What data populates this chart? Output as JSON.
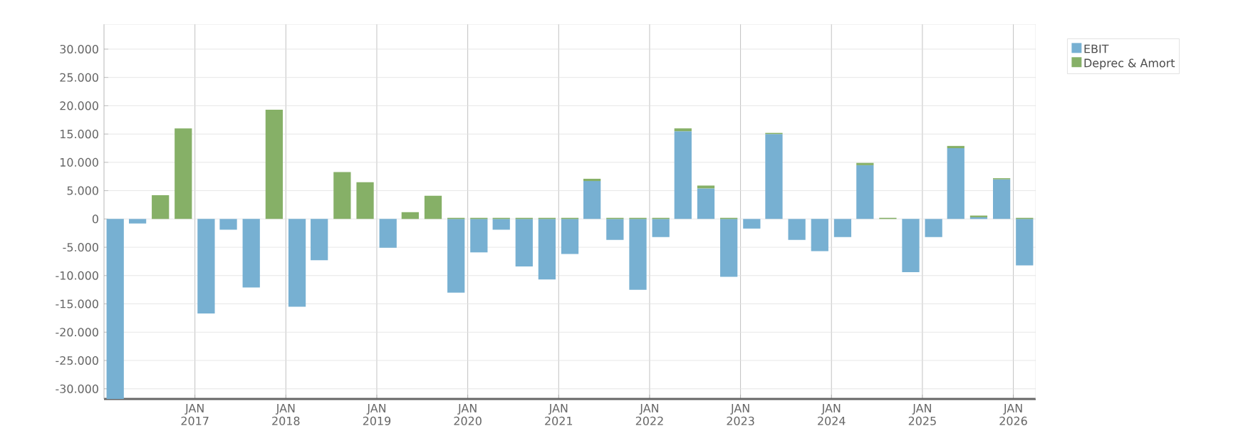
{
  "chart_data": {
    "type": "bar",
    "stacked": true,
    "grid": true,
    "legend": "top right",
    "x": [
      "2016-02-15",
      "2016-05-15",
      "2016-08-15",
      "2016-11-15",
      "2017-02-15",
      "2017-05-15",
      "2017-08-15",
      "2017-11-15",
      "2018-02-15",
      "2018-05-15",
      "2018-08-15",
      "2018-11-15",
      "2019-02-15",
      "2019-05-15",
      "2019-08-15",
      "2019-11-15",
      "2020-02-15",
      "2020-05-15",
      "2020-08-15",
      "2020-11-15",
      "2021-02-15",
      "2021-05-15",
      "2021-08-15",
      "2021-11-15",
      "2022-02-15",
      "2022-05-15",
      "2022-08-15",
      "2022-11-15",
      "2023-02-15",
      "2023-05-15",
      "2023-08-15",
      "2023-11-15",
      "2024-02-15",
      "2024-05-15",
      "2024-08-15",
      "2024-11-15",
      "2025-02-15",
      "2025-05-15",
      "2025-08-15",
      "2025-11-15",
      "2026-02-15"
    ],
    "series": [
      {
        "name": "EBIT",
        "color": "#77b0d2",
        "values": [
          -31800,
          -800,
          null,
          null,
          -16700,
          -1900,
          -12100,
          null,
          -15500,
          -7300,
          null,
          null,
          -5100,
          null,
          null,
          -13000,
          -5900,
          -1900,
          -8400,
          -10700,
          -6200,
          6700,
          -3700,
          -12500,
          -3200,
          15500,
          5400,
          -10200,
          -1700,
          15000,
          -3700,
          -5700,
          -3200,
          9500,
          null,
          -9400,
          -3200,
          12500,
          300,
          7000,
          -8200
        ]
      },
      {
        "name": "Deprec & Amort",
        "color": "#86b067",
        "values": [
          null,
          null,
          4200,
          16000,
          null,
          null,
          null,
          19300,
          null,
          null,
          8300,
          6500,
          null,
          1200,
          4100,
          200,
          200,
          200,
          200,
          200,
          200,
          400,
          200,
          200,
          200,
          500,
          500,
          200,
          null,
          200,
          null,
          null,
          null,
          400,
          200,
          null,
          null,
          400,
          300,
          200,
          200
        ]
      }
    ],
    "xlim": [
      "2016-01-01",
      "2026-04-01"
    ],
    "xticks": [
      {
        "value": "2017-01-01",
        "label": "JAN 2017"
      },
      {
        "value": "2018-01-01",
        "label": "JAN 2018"
      },
      {
        "value": "2019-01-01",
        "label": "JAN 2019"
      },
      {
        "value": "2020-01-01",
        "label": "JAN 2020"
      },
      {
        "value": "2021-01-01",
        "label": "JAN 2021"
      },
      {
        "value": "2022-01-01",
        "label": "JAN 2022"
      },
      {
        "value": "2023-01-01",
        "label": "JAN 2023"
      },
      {
        "value": "2024-01-01",
        "label": "JAN 2024"
      },
      {
        "value": "2025-01-01",
        "label": "JAN 2025"
      },
      {
        "value": "2026-01-01",
        "label": "JAN 2026"
      }
    ],
    "ylim": [
      -31800,
      34400
    ],
    "yticks": [
      {
        "value": 30000,
        "label": "30.000"
      },
      {
        "value": 25000,
        "label": "25.000"
      },
      {
        "value": 20000,
        "label": "20.000"
      },
      {
        "value": 15000,
        "label": "15.000"
      },
      {
        "value": 10000,
        "label": "10.000"
      },
      {
        "value": 5000,
        "label": "5.000"
      },
      0,
      {
        "value": -5000,
        "label": "-5.000"
      },
      {
        "value": -10000,
        "label": "-10.000"
      },
      {
        "value": -15000,
        "label": "-15.000"
      },
      {
        "value": -20000,
        "label": "-20.000"
      },
      {
        "value": -25000,
        "label": "-25.000"
      },
      {
        "value": -30000,
        "label": "-30.000"
      }
    ]
  }
}
